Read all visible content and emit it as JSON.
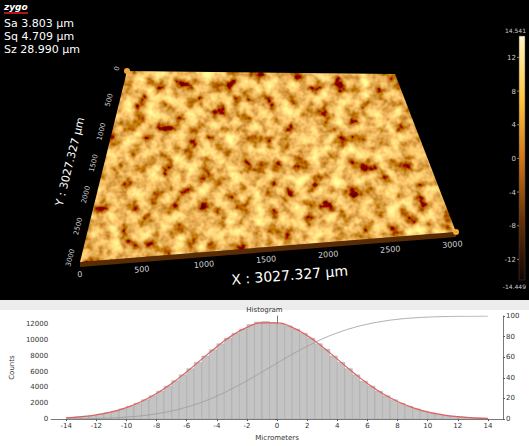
{
  "header": {
    "logo": "zygo",
    "stats": [
      "Sa 3.803  µm",
      "Sq 4.709  µm",
      "Sz 28.990  µm"
    ]
  },
  "surface_map": {
    "x_title": "X : 3027.327 µm",
    "y_title": "Y : 3027.327 µm",
    "xlim": [
      0,
      3027.327
    ],
    "xticks": [
      0,
      500,
      1000,
      1500,
      2000,
      2500,
      3000
    ],
    "ylim": [
      0,
      3027.327
    ],
    "yticks": [
      0,
      500,
      1000,
      1500,
      2000,
      2500,
      3000
    ],
    "colorbar": {
      "range": [
        -14.449,
        14.541
      ],
      "ticks": [
        14.541,
        12,
        8,
        4,
        0,
        -4,
        -8,
        -12,
        -14.449
      ]
    }
  },
  "chart_data": {
    "type": "histogram",
    "title": "Histogram",
    "x_label": "Micrometers",
    "y_label": "Counts",
    "bins": [
      -14,
      -13.5,
      -13,
      -12.5,
      -12,
      -11.5,
      -11,
      -10.5,
      -10,
      -9.5,
      -9,
      -8.5,
      -8,
      -7.5,
      -7,
      -6.5,
      -6,
      -5.5,
      -5,
      -4.5,
      -4,
      -3.5,
      -3,
      -2.5,
      -2,
      -1.5,
      -1,
      -0.5,
      0,
      0.5,
      1,
      1.5,
      2,
      2.5,
      3,
      3.5,
      4,
      4.5,
      5,
      5.5,
      6,
      6.5,
      7,
      7.5,
      8,
      8.5,
      9,
      9.5,
      10,
      10.5,
      11,
      11.5,
      12,
      12.5,
      13,
      13.5,
      14
    ],
    "counts": [
      193,
      262,
      352,
      467,
      613,
      794,
      1018,
      1291,
      1615,
      1998,
      2444,
      2951,
      3523,
      4157,
      4847,
      5586,
      6362,
      7159,
      7963,
      8752,
      9505,
      10204,
      10823,
      11348,
      11920,
      12250,
      12310,
      12160,
      11980,
      11758,
      11348,
      10823,
      10204,
      9505,
      8820,
      7963,
      7159,
      6362,
      5586,
      4790,
      4157,
      3523,
      2951,
      2444,
      1998,
      1615,
      1291,
      1018,
      794,
      613,
      467,
      352,
      262,
      193,
      140,
      101
    ],
    "color": "#c4c4c4",
    "series": [
      {
        "type": "line",
        "color": "#e06060",
        "x": [
          -14,
          -13,
          -12,
          -11,
          -10,
          -9,
          -8,
          -7,
          -6,
          -5,
          -4,
          -3,
          -2,
          -1,
          0,
          1,
          2,
          3,
          4,
          5,
          6,
          7,
          8,
          9,
          10,
          11,
          12,
          13,
          14
        ],
        "values": [
          164,
          304,
          536,
          901,
          1446,
          2213,
          3229,
          4496,
          5969,
          7560,
          9134,
          10525,
          11568,
          12128,
          12128,
          11568,
          10525,
          9134,
          7560,
          5969,
          4496,
          3229,
          2213,
          1446,
          901,
          536,
          304,
          164,
          85
        ]
      },
      {
        "type": "line",
        "color": "#9a9a9a",
        "axis": "y2",
        "x": [
          -14,
          -13,
          -12,
          -11,
          -10,
          -9,
          -8,
          -7,
          -6,
          -5,
          -4,
          -3,
          -2,
          -1,
          0,
          1,
          2,
          3,
          4,
          5,
          6,
          7,
          8,
          9,
          10,
          11,
          12,
          13,
          14
        ],
        "values": [
          0.2,
          0.3,
          0.6,
          1.1,
          2.0,
          3.2,
          5.2,
          7.9,
          11.6,
          16.4,
          22.3,
          29.4,
          37.2,
          45.7,
          54.3,
          62.8,
          70.6,
          77.7,
          83.6,
          88.4,
          92.1,
          94.8,
          96.8,
          98.1,
          98.9,
          99.4,
          99.7,
          99.8,
          99.9
        ]
      }
    ],
    "xlim": [
      -15,
      15
    ],
    "xticks": [
      -14,
      -12,
      -10,
      -8,
      -6,
      -4,
      -2,
      0,
      2,
      4,
      6,
      8,
      10,
      12,
      14
    ],
    "ylim": [
      0,
      13000
    ],
    "yticks": [
      0,
      2000,
      4000,
      6000,
      8000,
      10000,
      12000
    ],
    "y2lim": [
      0,
      100
    ],
    "y2ticks": [
      0,
      20,
      40,
      60,
      80,
      100
    ],
    "grid": false
  }
}
